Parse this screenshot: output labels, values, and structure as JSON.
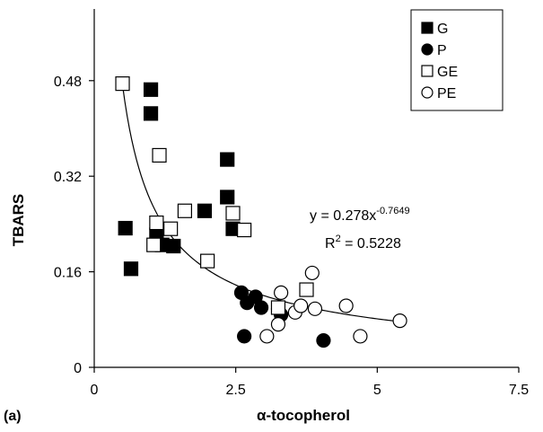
{
  "chart_data": {
    "type": "scatter",
    "panel_label": "(a)",
    "xlabel": "α-tocopherol",
    "ylabel": "TBARS",
    "xlim": [
      0,
      7.5
    ],
    "ylim": [
      0,
      0.6
    ],
    "xticks": [
      0,
      2.5,
      5,
      7.5
    ],
    "xtick_labels": [
      "0",
      "2.5",
      "5",
      "7.5"
    ],
    "yticks": [
      0,
      0.16,
      0.32,
      0.48
    ],
    "ytick_labels": [
      "0",
      "0.16",
      "0.32",
      "0.48"
    ],
    "grid": false,
    "legend_position": "top-right",
    "series": [
      {
        "name": "G",
        "marker": "square",
        "fill": "filled",
        "points": [
          [
            1.0,
            0.465
          ],
          [
            1.0,
            0.425
          ],
          [
            0.55,
            0.233
          ],
          [
            0.65,
            0.165
          ],
          [
            1.1,
            0.222
          ],
          [
            1.2,
            0.205
          ],
          [
            1.4,
            0.203
          ],
          [
            1.95,
            0.262
          ],
          [
            2.35,
            0.348
          ],
          [
            2.35,
            0.285
          ],
          [
            2.45,
            0.232
          ]
        ]
      },
      {
        "name": "P",
        "marker": "circle",
        "fill": "filled",
        "points": [
          [
            2.6,
            0.125
          ],
          [
            2.7,
            0.108
          ],
          [
            2.85,
            0.118
          ],
          [
            2.95,
            0.1
          ],
          [
            3.25,
            0.098
          ],
          [
            3.3,
            0.088
          ],
          [
            2.65,
            0.052
          ],
          [
            4.05,
            0.045
          ]
        ]
      },
      {
        "name": "GE",
        "marker": "square",
        "fill": "open",
        "points": [
          [
            0.5,
            0.475
          ],
          [
            1.15,
            0.355
          ],
          [
            1.1,
            0.242
          ],
          [
            1.05,
            0.205
          ],
          [
            1.35,
            0.232
          ],
          [
            1.6,
            0.262
          ],
          [
            2.0,
            0.178
          ],
          [
            2.45,
            0.258
          ],
          [
            2.65,
            0.23
          ],
          [
            3.25,
            0.1
          ],
          [
            3.75,
            0.13
          ]
        ]
      },
      {
        "name": "PE",
        "marker": "circle",
        "fill": "open",
        "points": [
          [
            3.05,
            0.052
          ],
          [
            3.25,
            0.072
          ],
          [
            3.3,
            0.125
          ],
          [
            3.55,
            0.092
          ],
          [
            3.65,
            0.103
          ],
          [
            3.85,
            0.158
          ],
          [
            3.9,
            0.098
          ],
          [
            4.45,
            0.103
          ],
          [
            4.7,
            0.052
          ],
          [
            5.4,
            0.078
          ]
        ]
      }
    ],
    "trendline": {
      "type": "power",
      "coef": 0.278,
      "exponent": -0.7649,
      "x_range": [
        0.5,
        5.4
      ]
    },
    "equation": {
      "prefix": "y = 0.278x",
      "exponent": "-0.7649"
    },
    "r_squared": {
      "prefix": "R",
      "sup": "2",
      "suffix": " = 0.5228"
    }
  }
}
